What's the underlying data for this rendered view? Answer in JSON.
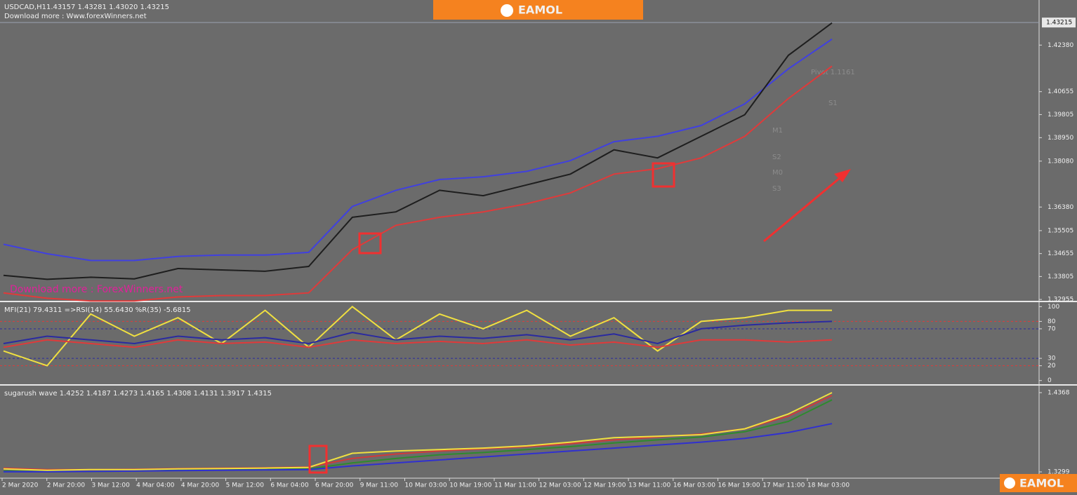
{
  "header": {
    "symbol": "USDCAD,H1",
    "ohlc": "1.43157 1.43281 1.43020 1.43215",
    "download": "Download more : Www.forexWinners.net"
  },
  "logo": "EAMOL",
  "watermark": "Download more : ForexWinners.net",
  "levels": [
    "Pivot 1.1161",
    "S1",
    "M1",
    "S2",
    "M0",
    "S3"
  ],
  "time_axis": [
    "2 Mar 2020",
    "2 Mar 20:00",
    "3 Mar 12:00",
    "4 Mar 04:00",
    "4 Mar 20:00",
    "5 Mar 12:00",
    "6 Mar 04:00",
    "6 Mar 20:00",
    "9 Mar 11:00",
    "10 Mar 03:00",
    "10 Mar 19:00",
    "11 Mar 11:00",
    "12 Mar 03:00",
    "12 Mar 19:00",
    "13 Mar 11:00",
    "16 Mar 03:00",
    "16 Mar 19:00",
    "17 Mar 11:00",
    "18 Mar 03:00"
  ],
  "chart_data": [
    {
      "type": "line",
      "current_price": {
        "value": 1.43215,
        "label": "1.43215"
      },
      "ylim": [
        1.3288,
        1.4405
      ],
      "yticks": [
        {
          "value": 1.4238,
          "label": "1.42380"
        },
        {
          "value": 1.40655,
          "label": "1.40655"
        },
        {
          "value": 1.39805,
          "label": "1.39805"
        },
        {
          "value": 1.3895,
          "label": "1.38950"
        },
        {
          "value": 1.3808,
          "label": "1.38080"
        },
        {
          "value": 1.3638,
          "label": "1.36380"
        },
        {
          "value": 1.35505,
          "label": "1.35505"
        },
        {
          "value": 1.34655,
          "label": "1.34655"
        },
        {
          "value": 1.33805,
          "label": "1.33805"
        },
        {
          "value": 1.32955,
          "label": "1.32955"
        }
      ],
      "series": [
        {
          "color": "#4040e0",
          "values": [
            1.35,
            1.3465,
            1.344,
            1.344,
            1.3455,
            1.346,
            1.346,
            1.347,
            1.364,
            1.37,
            1.374,
            1.375,
            1.377,
            1.381,
            1.388,
            1.39,
            1.394,
            1.402,
            1.415,
            1.426
          ]
        },
        {
          "color": "#e03a3a",
          "values": [
            1.332,
            1.33,
            1.329,
            1.329,
            1.3305,
            1.331,
            1.331,
            1.332,
            1.348,
            1.357,
            1.36,
            1.362,
            1.365,
            1.369,
            1.376,
            1.378,
            1.382,
            1.39,
            1.404,
            1.416
          ]
        },
        {
          "color": "#1e1e1e",
          "values": [
            1.3385,
            1.337,
            1.3378,
            1.3372,
            1.341,
            1.3405,
            1.34,
            1.3418,
            1.36,
            1.362,
            1.37,
            1.368,
            1.372,
            1.376,
            1.385,
            1.382,
            1.39,
            1.398,
            1.42,
            1.432
          ]
        }
      ]
    },
    {
      "type": "line",
      "title": "MFI(21) 79.4311  =>RSI(14) 55.6430  %R(35) -5.6815",
      "ylim": [
        -5,
        106
      ],
      "yticks": [
        0,
        20,
        30,
        70,
        80,
        100
      ],
      "levels": [
        {
          "value": 80,
          "color": "#e03a3a"
        },
        {
          "value": 70,
          "color": "#2a2aa0"
        },
        {
          "value": 30,
          "color": "#2a2aa0"
        },
        {
          "value": 20,
          "color": "#e03a3a"
        }
      ],
      "series": [
        {
          "color": "#f0e040",
          "values": [
            40,
            20,
            90,
            60,
            85,
            50,
            95,
            45,
            100,
            55,
            90,
            70,
            95,
            60,
            85,
            40,
            80,
            85,
            95,
            95
          ]
        },
        {
          "color": "#2a2aa0",
          "values": [
            50,
            60,
            55,
            50,
            60,
            55,
            58,
            50,
            65,
            55,
            60,
            57,
            62,
            55,
            63,
            50,
            70,
            75,
            78,
            80
          ]
        },
        {
          "color": "#e03a3a",
          "values": [
            45,
            55,
            50,
            45,
            55,
            50,
            52,
            45,
            55,
            50,
            53,
            50,
            55,
            48,
            52,
            45,
            55,
            55,
            52,
            55
          ]
        }
      ]
    },
    {
      "type": "line",
      "title": "sugarush wave 1.4252 1.4187 1.4273 1.4165 1.4308 1.4131 1.3917 1.4315",
      "ylim": [
        1.3233,
        1.4453
      ],
      "yticks": [
        1.4368,
        1.3299
      ],
      "series": [
        {
          "color": "#d03a3a",
          "values": [
            1.335,
            1.333,
            1.333,
            1.3335,
            1.3345,
            1.335,
            1.3355,
            1.3365,
            1.348,
            1.354,
            1.358,
            1.361,
            1.364,
            1.368,
            1.373,
            1.377,
            1.381,
            1.388,
            1.405,
            1.433
          ]
        },
        {
          "color": "#2e8a2e",
          "values": [
            1.331,
            1.33,
            1.3305,
            1.331,
            1.332,
            1.3325,
            1.333,
            1.334,
            1.342,
            1.348,
            1.353,
            1.356,
            1.36,
            1.364,
            1.369,
            1.373,
            1.377,
            1.384,
            1.398,
            1.427
          ]
        },
        {
          "color": "#3030d0",
          "values": [
            1.33,
            1.33,
            1.3305,
            1.331,
            1.3315,
            1.332,
            1.3325,
            1.333,
            1.338,
            1.342,
            1.346,
            1.35,
            1.354,
            1.358,
            1.362,
            1.366,
            1.37,
            1.375,
            1.383,
            1.395
          ]
        },
        {
          "color": "#f0e040",
          "values": [
            1.334,
            1.332,
            1.333,
            1.333,
            1.334,
            1.3345,
            1.335,
            1.336,
            1.355,
            1.358,
            1.36,
            1.362,
            1.365,
            1.37,
            1.376,
            1.378,
            1.38,
            1.388,
            1.408,
            1.4368
          ]
        }
      ]
    }
  ]
}
